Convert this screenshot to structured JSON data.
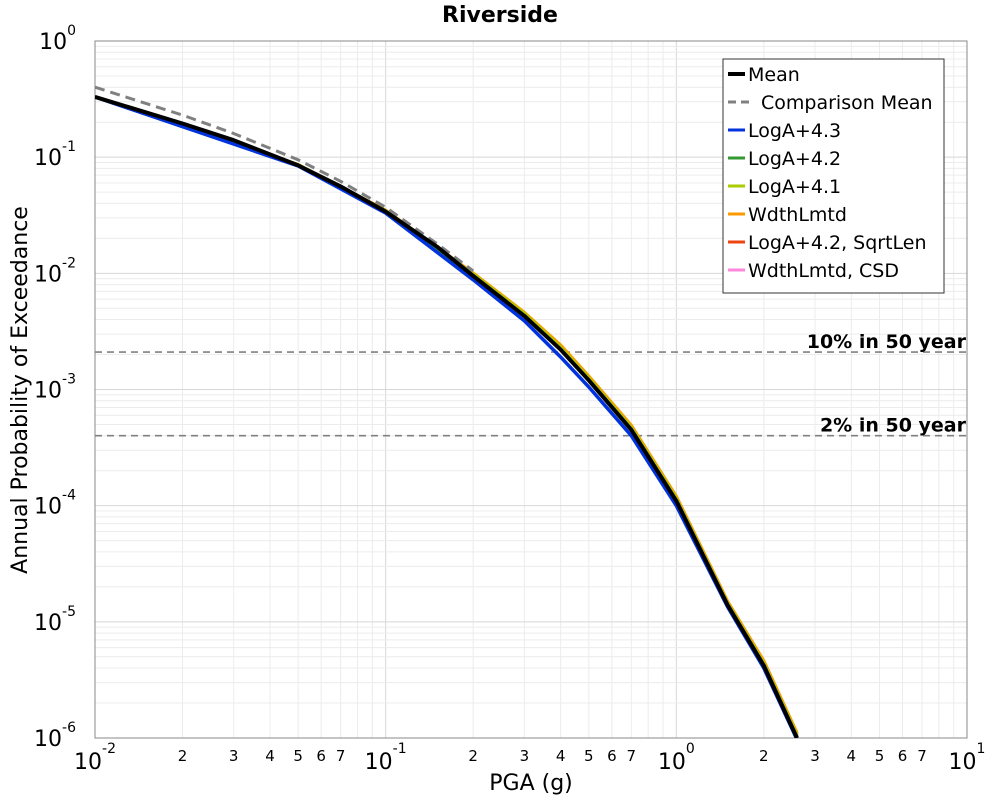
{
  "chart_data": {
    "type": "line",
    "title": "Riverside",
    "xlabel": "PGA (g)",
    "ylabel": "Annual Probability of Exceedance",
    "x_scale": "log",
    "y_scale": "log",
    "xlim": [
      0.01,
      10
    ],
    "ylim": [
      1e-06,
      1
    ],
    "grid": true,
    "legend_position": "top-right",
    "x_major_ticks": [
      {
        "base": "10",
        "exp": "-2"
      },
      {
        "base": "10",
        "exp": "-1"
      },
      {
        "base": "10",
        "exp": "0"
      },
      {
        "base": "10",
        "exp": "1"
      }
    ],
    "y_major_ticks": [
      {
        "base": "10",
        "exp": "0"
      },
      {
        "base": "10",
        "exp": "-1"
      },
      {
        "base": "10",
        "exp": "-2"
      },
      {
        "base": "10",
        "exp": "-3"
      },
      {
        "base": "10",
        "exp": "-4"
      },
      {
        "base": "10",
        "exp": "-5"
      },
      {
        "base": "10",
        "exp": "-6"
      }
    ],
    "x_minor_tick_labels": [
      "2",
      "3",
      "4",
      "5",
      "6",
      "7"
    ],
    "series": [
      {
        "name": "Mean",
        "color": "#000000",
        "style": "solid",
        "x": [
          0.01,
          0.02,
          0.03,
          0.05,
          0.07,
          0.1,
          0.15,
          0.2,
          0.3,
          0.4,
          0.5,
          0.7,
          1.0,
          1.5,
          2.0,
          2.6
        ],
        "y": [
          0.33,
          0.195,
          0.14,
          0.085,
          0.056,
          0.034,
          0.017,
          0.0095,
          0.0043,
          0.0022,
          0.0012,
          0.00045,
          0.00011,
          1.4e-05,
          4.2e-06,
          1e-06
        ]
      },
      {
        "name": "Comparison Mean",
        "color": "#808080",
        "style": "dashed",
        "x": [
          0.01,
          0.02,
          0.03,
          0.05,
          0.07,
          0.1,
          0.15,
          0.2
        ],
        "y": [
          0.4,
          0.23,
          0.16,
          0.095,
          0.062,
          0.037,
          0.018,
          0.0105
        ]
      },
      {
        "name": "LogA+4.3",
        "color": "#0033dd",
        "style": "solid",
        "x": [
          0.01,
          0.05,
          0.1,
          0.2,
          0.3,
          0.4,
          0.5,
          0.7,
          1.0,
          1.5,
          2.0,
          2.6
        ],
        "y": [
          0.33,
          0.084,
          0.033,
          0.0088,
          0.0039,
          0.0019,
          0.00105,
          0.0004,
          0.0001,
          1.35e-05,
          4e-06,
          9.7e-07
        ]
      },
      {
        "name": "LogA+4.2",
        "color": "#339933",
        "style": "solid",
        "x": [
          0.01,
          0.05,
          0.1,
          0.2,
          0.3,
          0.4,
          0.5,
          0.7,
          1.0,
          1.5,
          2.0,
          2.6
        ],
        "y": [
          0.33,
          0.085,
          0.034,
          0.0095,
          0.0043,
          0.0022,
          0.0012,
          0.00045,
          0.00011,
          1.4e-05,
          4.2e-06,
          1e-06
        ]
      },
      {
        "name": "LogA+4.1",
        "color": "#aacc00",
        "style": "solid",
        "x": [
          0.01,
          0.05,
          0.1,
          0.2,
          0.3,
          0.4,
          0.5,
          0.7,
          1.0,
          1.5,
          2.0,
          2.6
        ],
        "y": [
          0.33,
          0.086,
          0.0345,
          0.0098,
          0.0045,
          0.0023,
          0.00125,
          0.00047,
          0.000115,
          1.45e-05,
          4.4e-06,
          1.05e-06
        ]
      },
      {
        "name": "WdthLmtd",
        "color": "#ff9900",
        "style": "solid",
        "x": [
          0.01,
          0.05,
          0.1,
          0.2,
          0.3,
          0.4,
          0.5,
          0.7,
          1.0,
          1.5,
          2.0,
          2.6
        ],
        "y": [
          0.33,
          0.086,
          0.0348,
          0.01,
          0.0046,
          0.0024,
          0.0013,
          0.00049,
          0.00012,
          1.5e-05,
          4.6e-06,
          1.1e-06
        ]
      },
      {
        "name": "LogA+4.2, SqrtLen",
        "color": "#ee4411",
        "style": "solid",
        "x": [
          0.01,
          0.05,
          0.1,
          0.2,
          0.3,
          0.4,
          0.5,
          0.7,
          1.0,
          1.5,
          2.0,
          2.6
        ],
        "y": [
          0.33,
          0.0855,
          0.0345,
          0.0097,
          0.0044,
          0.0023,
          0.00122,
          0.00046,
          0.000112,
          1.42e-05,
          4.3e-06,
          1.02e-06
        ]
      },
      {
        "name": "WdthLmtd, CSD",
        "color": "#ff88dd",
        "style": "solid",
        "x": [
          0.01,
          0.05,
          0.1,
          0.2,
          0.3,
          0.4,
          0.5,
          0.7,
          1.0,
          1.5,
          2.0,
          2.6
        ],
        "y": [
          0.33,
          0.0855,
          0.0346,
          0.0098,
          0.0045,
          0.00235,
          0.00126,
          0.00048,
          0.000117,
          1.47e-05,
          4.5e-06,
          1.07e-06
        ]
      }
    ],
    "draw_order": [
      7,
      6,
      5,
      4,
      3,
      2,
      1,
      0
    ],
    "reference_lines": [
      {
        "label": "10% in 50 year",
        "y": 0.0021,
        "color": "#808080",
        "style": "dashed"
      },
      {
        "label": "2% in 50 year",
        "y": 0.0004,
        "color": "#808080",
        "style": "dashed"
      }
    ]
  }
}
